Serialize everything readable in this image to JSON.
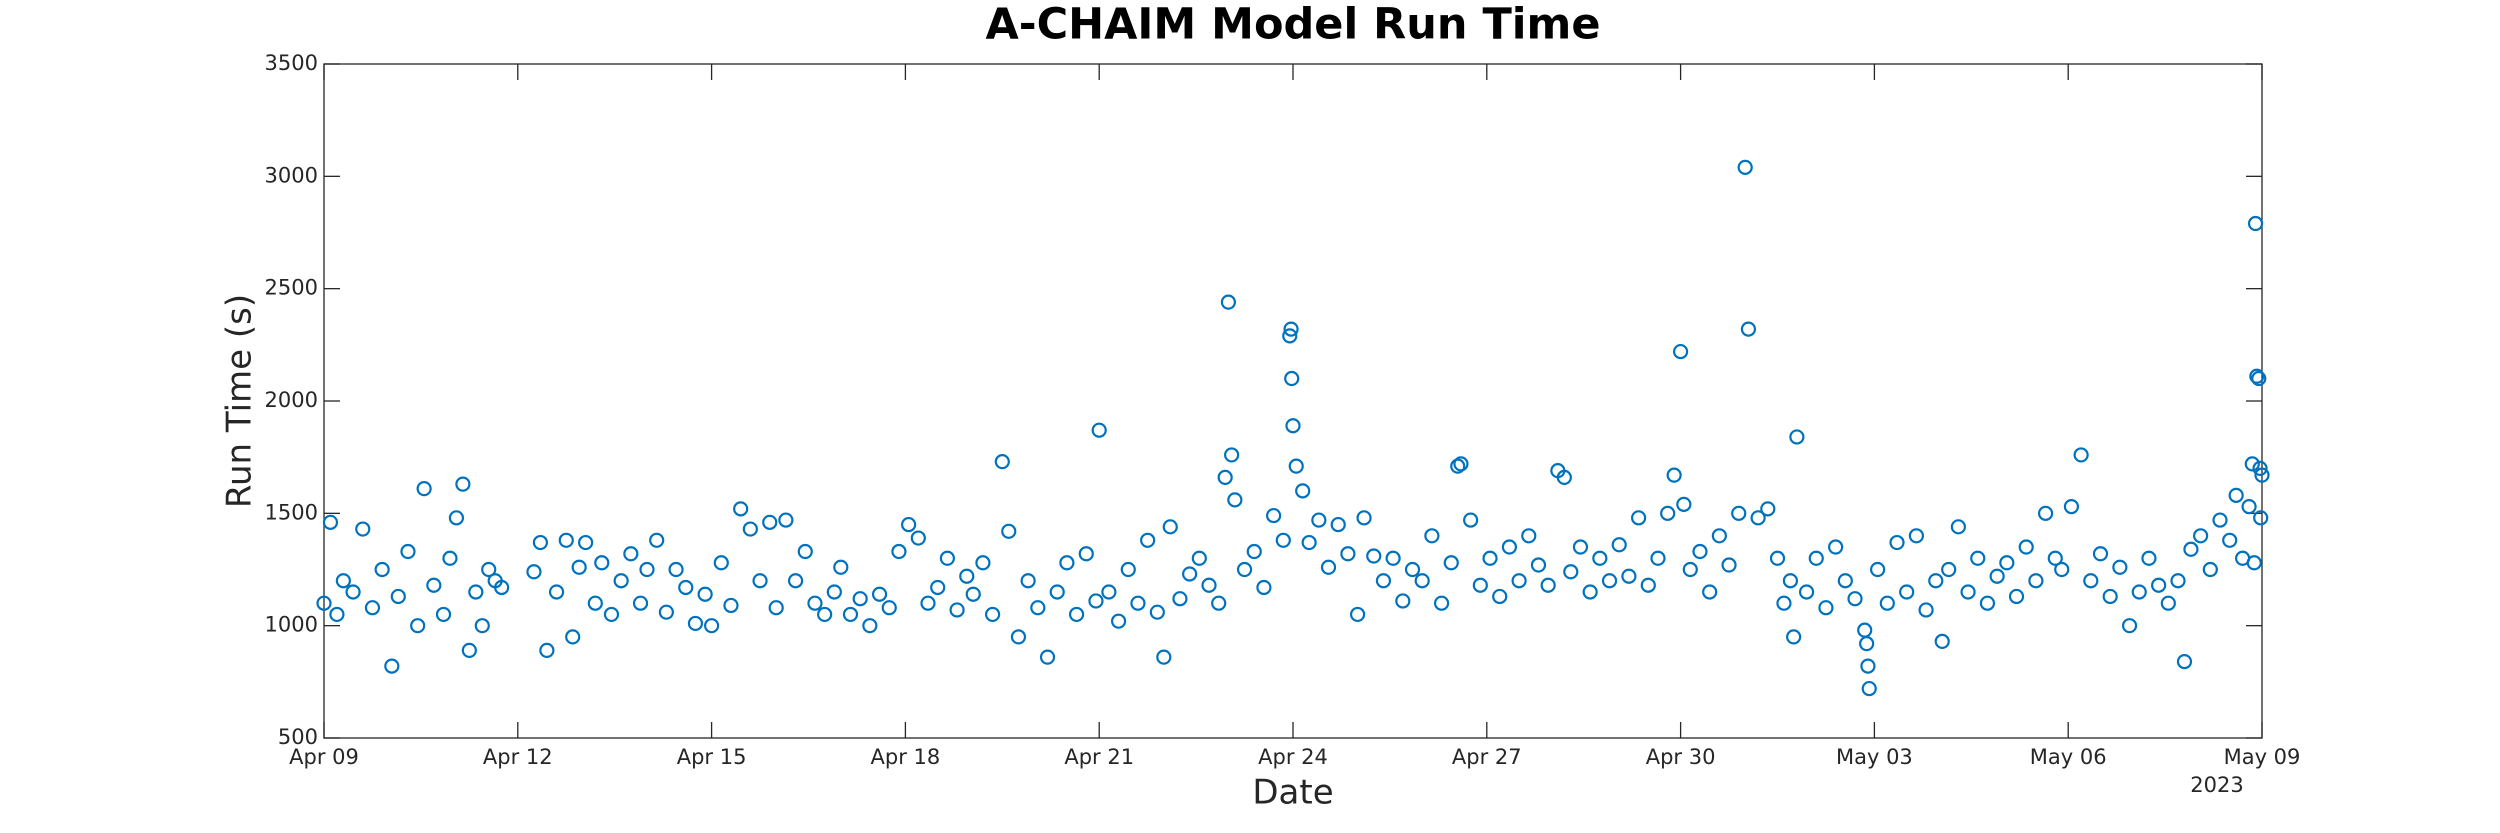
{
  "chart_data": {
    "type": "scatter",
    "title": "A-CHAIM Model Run Time",
    "x_label": "Date",
    "y_label": "Run Time (s)",
    "x_year_label": "2023",
    "color": "#0072bd",
    "marker": "open-circle",
    "grid": false,
    "xlim": [
      0,
      30
    ],
    "xticks": [
      {
        "value": 0,
        "label": "Apr 09"
      },
      {
        "value": 3,
        "label": "Apr 12"
      },
      {
        "value": 6,
        "label": "Apr 15"
      },
      {
        "value": 9,
        "label": "Apr 18"
      },
      {
        "value": 12,
        "label": "Apr 21"
      },
      {
        "value": 15,
        "label": "Apr 24"
      },
      {
        "value": 18,
        "label": "Apr 27"
      },
      {
        "value": 21,
        "label": "Apr 30"
      },
      {
        "value": 24,
        "label": "May 03"
      },
      {
        "value": 27,
        "label": "May 06"
      },
      {
        "value": 30,
        "label": "May 09"
      }
    ],
    "ylim": [
      500,
      3500
    ],
    "yticks": [
      500,
      1000,
      1500,
      2000,
      2500,
      3000,
      3500
    ],
    "x": [
      0,
      0.1,
      0.2,
      0.3,
      0.45,
      0.6,
      0.75,
      0.9,
      1.05,
      1.15,
      1.3,
      1.45,
      1.55,
      1.7,
      1.85,
      1.95,
      2.05,
      2.15,
      2.25,
      2.35,
      2.45,
      2.55,
      2.65,
      2.75,
      3.25,
      3.35,
      3.45,
      3.6,
      3.75,
      3.85,
      3.95,
      4.05,
      4.2,
      4.3,
      4.45,
      4.6,
      4.75,
      4.9,
      5,
      5.15,
      5.3,
      5.45,
      5.6,
      5.75,
      5.9,
      6,
      6.15,
      6.3,
      6.45,
      6.6,
      6.75,
      6.9,
      7,
      7.15,
      7.3,
      7.45,
      7.6,
      7.75,
      7.9,
      8,
      8.15,
      8.3,
      8.45,
      8.6,
      8.75,
      8.9,
      9.05,
      9.2,
      9.35,
      9.5,
      9.65,
      9.8,
      9.95,
      10.05,
      10.2,
      10.35,
      10.5,
      10.6,
      10.75,
      10.9,
      11.05,
      11.2,
      11.35,
      11.5,
      11.65,
      11.8,
      11.95,
      12,
      12.15,
      12.3,
      12.45,
      12.6,
      12.75,
      12.9,
      13,
      13.1,
      13.25,
      13.4,
      13.55,
      13.7,
      13.85,
      13.95,
      14,
      14.05,
      14.1,
      14.25,
      14.4,
      14.55,
      14.7,
      14.85,
      14.95,
      14.97,
      14.98,
      15,
      15.05,
      15.15,
      15.25,
      15.4,
      15.55,
      15.7,
      15.85,
      16,
      16.1,
      16.25,
      16.4,
      16.55,
      16.7,
      16.85,
      17,
      17.15,
      17.3,
      17.45,
      17.55,
      17.6,
      17.75,
      17.9,
      18.05,
      18.2,
      18.35,
      18.5,
      18.65,
      18.8,
      18.95,
      19.1,
      19.2,
      19.3,
      19.45,
      19.6,
      19.75,
      19.9,
      20.05,
      20.2,
      20.35,
      20.5,
      20.65,
      20.8,
      20.9,
      21,
      21.05,
      21.15,
      21.3,
      21.45,
      21.6,
      21.75,
      21.9,
      22,
      22.05,
      22.2,
      22.35,
      22.5,
      22.6,
      22.7,
      22.75,
      22.8,
      22.95,
      23.1,
      23.25,
      23.4,
      23.55,
      23.7,
      23.85,
      23.88,
      23.9,
      23.92,
      24.05,
      24.2,
      24.35,
      24.5,
      24.65,
      24.8,
      24.95,
      25.05,
      25.15,
      25.3,
      25.45,
      25.6,
      25.75,
      25.9,
      26.05,
      26.2,
      26.35,
      26.5,
      26.65,
      26.8,
      26.9,
      27.05,
      27.2,
      27.35,
      27.5,
      27.65,
      27.8,
      27.95,
      28.1,
      28.25,
      28.4,
      28.55,
      28.7,
      28.8,
      28.9,
      29.05,
      29.2,
      29.35,
      29.5,
      29.6,
      29.7,
      29.8,
      29.85,
      29.9,
      29.92,
      29.95,
      29.97,
      30,
      29.98,
      29.88
    ],
    "values": [
      1100,
      1460,
      1050,
      1200,
      1150,
      1430,
      1080,
      1250,
      820,
      1130,
      1330,
      1000,
      1610,
      1180,
      1050,
      1300,
      1480,
      1630,
      890,
      1150,
      1000,
      1250,
      1200,
      1170,
      1240,
      1370,
      890,
      1150,
      1380,
      950,
      1260,
      1370,
      1100,
      1280,
      1050,
      1200,
      1320,
      1100,
      1250,
      1380,
      1060,
      1250,
      1170,
      1010,
      1140,
      1000,
      1280,
      1090,
      1520,
      1430,
      1200,
      1460,
      1080,
      1470,
      1200,
      1330,
      1100,
      1050,
      1150,
      1260,
      1050,
      1120,
      1000,
      1140,
      1080,
      1330,
      1450,
      1390,
      1100,
      1170,
      1300,
      1070,
      1220,
      1140,
      1280,
      1050,
      1730,
      1420,
      950,
      1200,
      1080,
      860,
      1150,
      1280,
      1050,
      1320,
      1110,
      1870,
      1150,
      1020,
      1250,
      1100,
      1380,
      1060,
      860,
      1440,
      1120,
      1230,
      1300,
      1180,
      1100,
      1660,
      2440,
      1760,
      1560,
      1250,
      1330,
      1170,
      1490,
      1380,
      2290,
      2320,
      2100,
      1890,
      1710,
      1600,
      1370,
      1470,
      1260,
      1450,
      1320,
      1050,
      1480,
      1310,
      1200,
      1300,
      1110,
      1250,
      1200,
      1400,
      1100,
      1280,
      1710,
      1720,
      1470,
      1180,
      1300,
      1130,
      1350,
      1200,
      1400,
      1270,
      1180,
      1690,
      1660,
      1240,
      1350,
      1150,
      1300,
      1200,
      1360,
      1220,
      1480,
      1180,
      1300,
      1500,
      1670,
      2220,
      1540,
      1250,
      1330,
      1150,
      1400,
      1270,
      1500,
      3040,
      2320,
      1480,
      1520,
      1300,
      1100,
      1200,
      950,
      1840,
      1150,
      1300,
      1080,
      1350,
      1200,
      1120,
      980,
      920,
      820,
      720,
      1250,
      1100,
      1370,
      1150,
      1400,
      1070,
      1200,
      930,
      1250,
      1440,
      1150,
      1300,
      1100,
      1220,
      1280,
      1130,
      1350,
      1200,
      1500,
      1300,
      1250,
      1530,
      1760,
      1200,
      1320,
      1130,
      1260,
      1000,
      1150,
      1300,
      1180,
      1100,
      1200,
      840,
      1340,
      1400,
      1250,
      1470,
      1380,
      1580,
      1300,
      1530,
      1720,
      2790,
      2110,
      2100,
      1700,
      1670,
      1480,
      1280
    ]
  }
}
